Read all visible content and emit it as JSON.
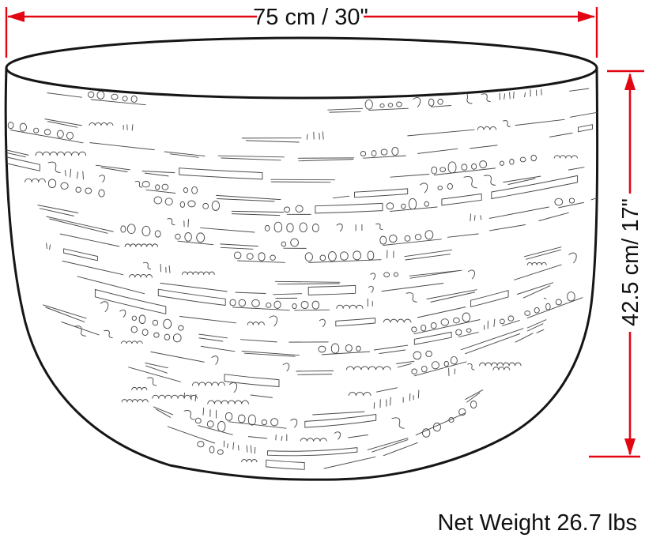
{
  "labels": {
    "width": "75 cm / 30\"",
    "height": "42.5 cm/ 17\"",
    "weight": "Net Weight 26.7 lbs"
  },
  "colors": {
    "dimension_red": "#e20613",
    "outline_black": "#161616",
    "texture_gray": "#4a4a4a",
    "background": "#ffffff"
  }
}
